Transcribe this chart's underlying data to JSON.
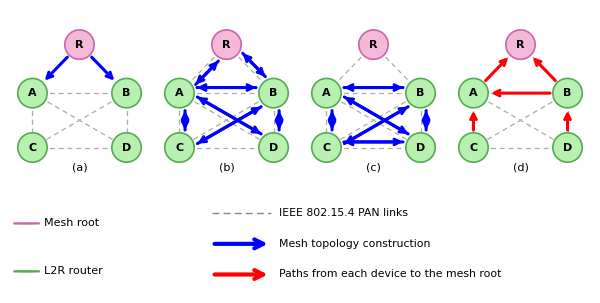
{
  "subplots": [
    "(a)",
    "(b)",
    "(c)",
    "(d)"
  ],
  "node_color_R": "#f4b8d8",
  "node_color_ABCD": "#b8f0b0",
  "node_edge_color_R": "#cc66aa",
  "node_edge_color_ABCD": "#55aa55",
  "pan_links": [
    [
      "R",
      "A"
    ],
    [
      "R",
      "B"
    ],
    [
      "A",
      "B"
    ],
    [
      "A",
      "C"
    ],
    [
      "A",
      "D"
    ],
    [
      "B",
      "C"
    ],
    [
      "B",
      "D"
    ],
    [
      "C",
      "D"
    ]
  ],
  "arrows_a": [
    {
      "src": "R",
      "dst": "A",
      "color": "blue"
    },
    {
      "src": "R",
      "dst": "B",
      "color": "blue"
    }
  ],
  "arrows_b": [
    {
      "src": "R",
      "dst": "A",
      "color": "blue"
    },
    {
      "src": "A",
      "dst": "R",
      "color": "blue"
    },
    {
      "src": "R",
      "dst": "B",
      "color": "blue"
    },
    {
      "src": "B",
      "dst": "R",
      "color": "blue"
    },
    {
      "src": "A",
      "dst": "B",
      "color": "blue"
    },
    {
      "src": "B",
      "dst": "A",
      "color": "blue"
    },
    {
      "src": "A",
      "dst": "C",
      "color": "blue"
    },
    {
      "src": "C",
      "dst": "A",
      "color": "blue"
    },
    {
      "src": "A",
      "dst": "D",
      "color": "blue"
    },
    {
      "src": "D",
      "dst": "A",
      "color": "blue"
    },
    {
      "src": "B",
      "dst": "C",
      "color": "blue"
    },
    {
      "src": "C",
      "dst": "B",
      "color": "blue"
    },
    {
      "src": "B",
      "dst": "D",
      "color": "blue"
    },
    {
      "src": "D",
      "dst": "B",
      "color": "blue"
    }
  ],
  "arrows_c": [
    {
      "src": "A",
      "dst": "B",
      "color": "blue"
    },
    {
      "src": "B",
      "dst": "A",
      "color": "blue"
    },
    {
      "src": "A",
      "dst": "C",
      "color": "blue"
    },
    {
      "src": "C",
      "dst": "A",
      "color": "blue"
    },
    {
      "src": "A",
      "dst": "D",
      "color": "blue"
    },
    {
      "src": "D",
      "dst": "A",
      "color": "blue"
    },
    {
      "src": "B",
      "dst": "C",
      "color": "blue"
    },
    {
      "src": "C",
      "dst": "B",
      "color": "blue"
    },
    {
      "src": "B",
      "dst": "D",
      "color": "blue"
    },
    {
      "src": "D",
      "dst": "B",
      "color": "blue"
    },
    {
      "src": "C",
      "dst": "D",
      "color": "blue"
    },
    {
      "src": "D",
      "dst": "C",
      "color": "blue"
    }
  ],
  "arrows_d": [
    {
      "src": "A",
      "dst": "R",
      "color": "red"
    },
    {
      "src": "B",
      "dst": "R",
      "color": "red"
    },
    {
      "src": "B",
      "dst": "A",
      "color": "red"
    },
    {
      "src": "C",
      "dst": "A",
      "color": "red"
    },
    {
      "src": "D",
      "dst": "B",
      "color": "red"
    }
  ],
  "bg_color": "#ffffff"
}
